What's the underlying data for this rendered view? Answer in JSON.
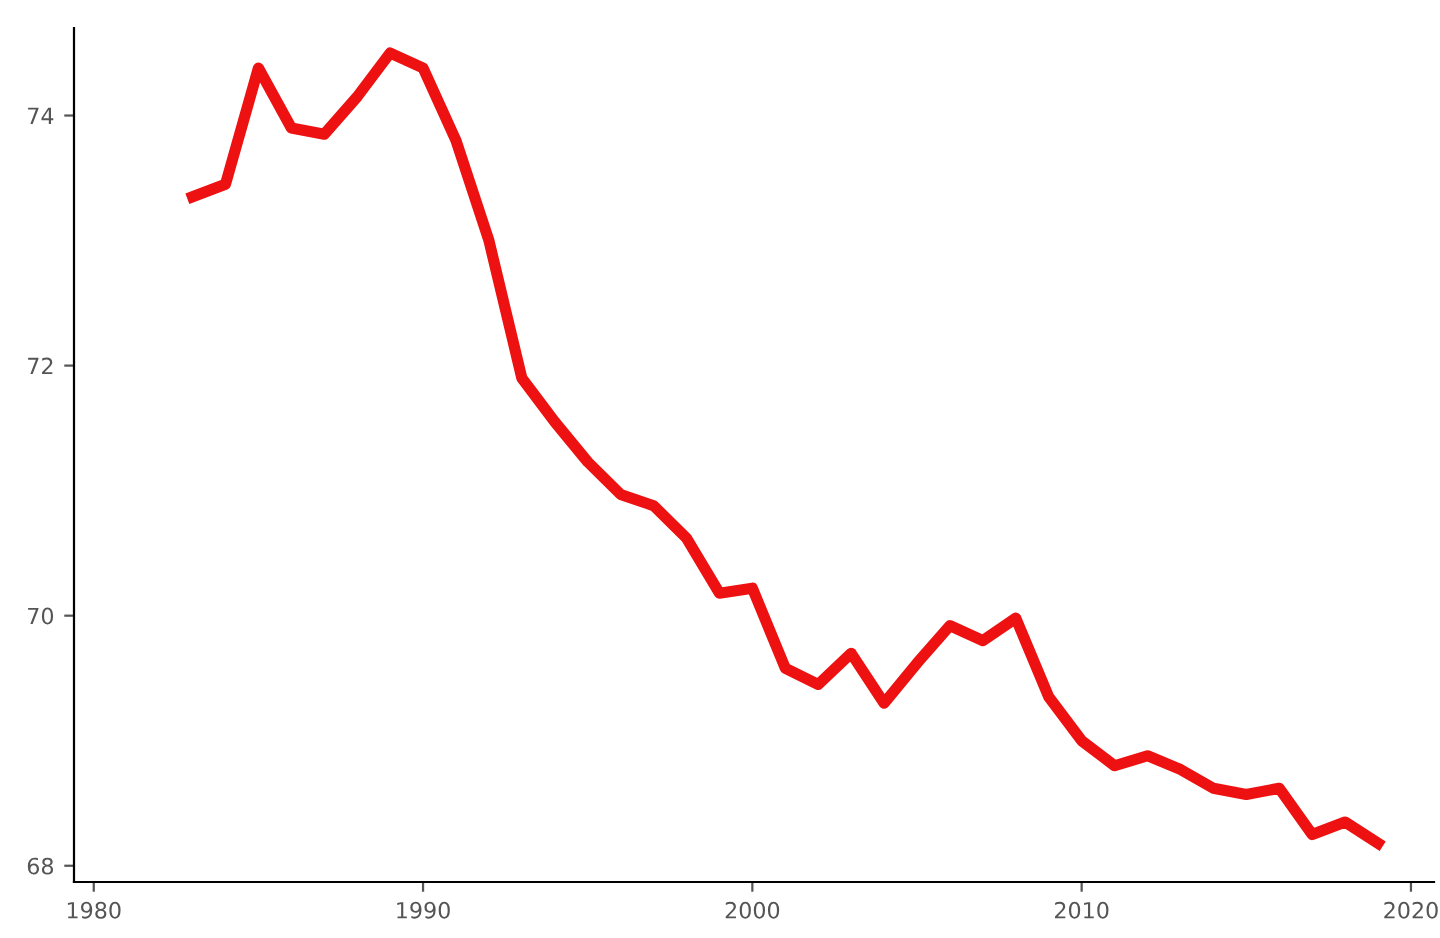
{
  "chart_data": {
    "type": "line",
    "x": [
      1983,
      1984,
      1985,
      1986,
      1987,
      1988,
      1989,
      1990,
      1991,
      1992,
      1993,
      1994,
      1995,
      1996,
      1997,
      1998,
      1999,
      2000,
      2001,
      2002,
      2003,
      2004,
      2005,
      2006,
      2007,
      2008,
      2009,
      2010,
      2011,
      2012,
      2013,
      2014,
      2015,
      2016,
      2017,
      2018,
      2019
    ],
    "series": [
      {
        "color": "#ee1111",
        "values": [
          73.35,
          73.45,
          74.38,
          73.9,
          73.85,
          74.15,
          74.5,
          74.38,
          73.8,
          73.0,
          71.9,
          71.55,
          71.23,
          70.97,
          70.88,
          70.62,
          70.18,
          70.22,
          69.58,
          69.45,
          69.7,
          69.3,
          69.62,
          69.92,
          69.8,
          69.98,
          69.35,
          69.0,
          68.8,
          68.88,
          68.77,
          68.62,
          68.57,
          68.62,
          68.25,
          68.35,
          68.18
        ]
      }
    ],
    "xlim": [
      1979.4,
      2020.7
    ],
    "ylim": [
      67.87,
      74.7
    ],
    "xticks": [
      1980,
      1990,
      2000,
      2010,
      2020
    ],
    "yticks": [
      68,
      70,
      72,
      74
    ],
    "grid": false,
    "legend": false,
    "marker": "none",
    "line_style": "solid"
  }
}
